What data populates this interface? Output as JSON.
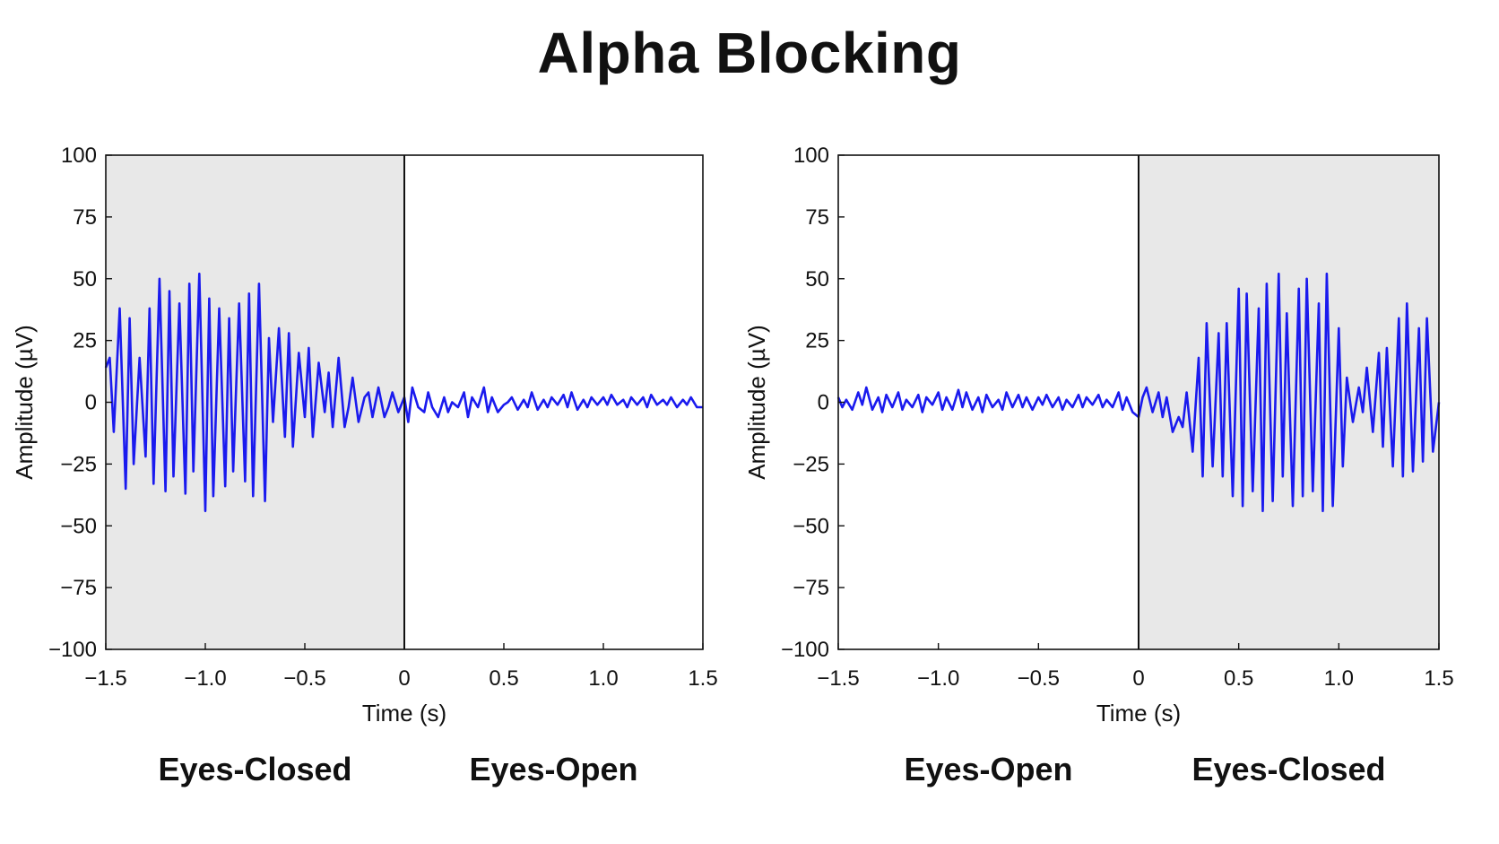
{
  "title": "Alpha Blocking",
  "colors": {
    "trace": "#1a1aee",
    "shade": "#e8e8e8",
    "axis": "#111111"
  },
  "chart_data": [
    {
      "type": "line",
      "xlabel": "Time (s)",
      "ylabel": "Amplitude (µV)",
      "xlim": [
        -1.5,
        1.5
      ],
      "ylim": [
        -100,
        100
      ],
      "xticks": [
        -1.5,
        -1.0,
        -0.5,
        0,
        0.5,
        1.0,
        1.5
      ],
      "xtick_labels": [
        "−1.5",
        "−1.0",
        "−0.5",
        "0",
        "0.5",
        "1.0",
        "1.5"
      ],
      "yticks": [
        100,
        75,
        50,
        25,
        0,
        -25,
        -50,
        -75,
        -100
      ],
      "ytick_labels": [
        "100",
        "75",
        "50",
        "25",
        "0",
        "−25",
        "−50",
        "−75",
        "−100"
      ],
      "shaded_region": [
        -1.5,
        0
      ],
      "event_line": 0,
      "grid": false,
      "segment_labels": [
        "Eyes-Closed",
        "Eyes-Open"
      ],
      "series": [
        {
          "x": [
            -1.5,
            -1.48,
            -1.46,
            -1.43,
            -1.4,
            -1.38,
            -1.36,
            -1.33,
            -1.3,
            -1.28,
            -1.26,
            -1.23,
            -1.2,
            -1.18,
            -1.16,
            -1.13,
            -1.1,
            -1.08,
            -1.06,
            -1.03,
            -1.0,
            -0.98,
            -0.96,
            -0.93,
            -0.9,
            -0.88,
            -0.86,
            -0.83,
            -0.8,
            -0.78,
            -0.76,
            -0.73,
            -0.7,
            -0.68,
            -0.66,
            -0.63,
            -0.6,
            -0.58,
            -0.56,
            -0.53,
            -0.5,
            -0.48,
            -0.46,
            -0.43,
            -0.4,
            -0.38,
            -0.36,
            -0.33,
            -0.3,
            -0.28,
            -0.26,
            -0.23,
            -0.2,
            -0.18,
            -0.16,
            -0.13,
            -0.1,
            -0.08,
            -0.06,
            -0.03,
            0.0,
            0.02,
            0.04,
            0.07,
            0.1,
            0.12,
            0.14,
            0.17,
            0.2,
            0.22,
            0.24,
            0.27,
            0.3,
            0.32,
            0.34,
            0.37,
            0.4,
            0.42,
            0.44,
            0.47,
            0.5,
            0.52,
            0.54,
            0.57,
            0.6,
            0.62,
            0.64,
            0.67,
            0.7,
            0.72,
            0.74,
            0.77,
            0.8,
            0.82,
            0.84,
            0.87,
            0.9,
            0.92,
            0.94,
            0.97,
            1.0,
            1.02,
            1.04,
            1.07,
            1.1,
            1.12,
            1.14,
            1.17,
            1.2,
            1.22,
            1.24,
            1.27,
            1.3,
            1.32,
            1.34,
            1.37,
            1.4,
            1.42,
            1.44,
            1.47,
            1.5
          ],
          "y": [
            14,
            18,
            -12,
            38,
            -35,
            34,
            -25,
            18,
            -22,
            38,
            -33,
            50,
            -36,
            45,
            -30,
            40,
            -37,
            48,
            -28,
            52,
            -44,
            42,
            -38,
            38,
            -34,
            34,
            -28,
            40,
            -32,
            44,
            -38,
            48,
            -40,
            26,
            -8,
            30,
            -14,
            28,
            -18,
            20,
            -6,
            22,
            -14,
            16,
            -4,
            12,
            -10,
            18,
            -10,
            -2,
            10,
            -8,
            2,
            4,
            -6,
            6,
            -6,
            -2,
            4,
            -4,
            2,
            -8,
            6,
            -2,
            -4,
            4,
            -2,
            -6,
            2,
            -4,
            0,
            -2,
            4,
            -6,
            2,
            -2,
            6,
            -4,
            2,
            -4,
            -1,
            0,
            2,
            -3,
            1,
            -2,
            4,
            -3,
            1,
            -2,
            2,
            -1,
            3,
            -2,
            4,
            -3,
            1,
            -2,
            2,
            -1,
            2,
            -1,
            3,
            -1,
            1,
            -2,
            2,
            -1,
            2,
            -2,
            3,
            -1,
            1,
            -1,
            2,
            -2,
            1,
            -1,
            2,
            -2,
            -2
          ]
        }
      ]
    },
    {
      "type": "line",
      "xlabel": "Time (s)",
      "ylabel": "Amplitude (µV)",
      "xlim": [
        -1.5,
        1.5
      ],
      "ylim": [
        -100,
        100
      ],
      "xticks": [
        -1.5,
        -1.0,
        -0.5,
        0,
        0.5,
        1.0,
        1.5
      ],
      "xtick_labels": [
        "−1.5",
        "−1.0",
        "−0.5",
        "0",
        "0.5",
        "1.0",
        "1.5"
      ],
      "yticks": [
        100,
        75,
        50,
        25,
        0,
        -25,
        -50,
        -75,
        -100
      ],
      "ytick_labels": [
        "100",
        "75",
        "50",
        "25",
        "0",
        "−25",
        "−50",
        "−75",
        "−100"
      ],
      "shaded_region": [
        0,
        1.5
      ],
      "event_line": 0,
      "grid": false,
      "segment_labels": [
        "Eyes-Open",
        "Eyes-Closed"
      ],
      "series": [
        {
          "x": [
            -1.5,
            -1.48,
            -1.46,
            -1.43,
            -1.4,
            -1.38,
            -1.36,
            -1.33,
            -1.3,
            -1.28,
            -1.26,
            -1.23,
            -1.2,
            -1.18,
            -1.16,
            -1.13,
            -1.1,
            -1.08,
            -1.06,
            -1.03,
            -1.0,
            -0.98,
            -0.96,
            -0.93,
            -0.9,
            -0.88,
            -0.86,
            -0.83,
            -0.8,
            -0.78,
            -0.76,
            -0.73,
            -0.7,
            -0.68,
            -0.66,
            -0.63,
            -0.6,
            -0.58,
            -0.56,
            -0.53,
            -0.5,
            -0.48,
            -0.46,
            -0.43,
            -0.4,
            -0.38,
            -0.36,
            -0.33,
            -0.3,
            -0.28,
            -0.26,
            -0.23,
            -0.2,
            -0.18,
            -0.16,
            -0.13,
            -0.1,
            -0.08,
            -0.06,
            -0.03,
            0.0,
            0.02,
            0.04,
            0.07,
            0.1,
            0.12,
            0.14,
            0.17,
            0.2,
            0.22,
            0.24,
            0.27,
            0.3,
            0.32,
            0.34,
            0.37,
            0.4,
            0.42,
            0.44,
            0.47,
            0.5,
            0.52,
            0.54,
            0.57,
            0.6,
            0.62,
            0.64,
            0.67,
            0.7,
            0.72,
            0.74,
            0.77,
            0.8,
            0.82,
            0.84,
            0.87,
            0.9,
            0.92,
            0.94,
            0.97,
            1.0,
            1.02,
            1.04,
            1.07,
            1.1,
            1.12,
            1.14,
            1.17,
            1.2,
            1.22,
            1.24,
            1.27,
            1.3,
            1.32,
            1.34,
            1.37,
            1.4,
            1.42,
            1.44,
            1.47,
            1.5
          ],
          "y": [
            2,
            -2,
            1,
            -3,
            4,
            -1,
            6,
            -3,
            2,
            -4,
            3,
            -2,
            4,
            -3,
            1,
            -2,
            3,
            -4,
            2,
            -1,
            4,
            -3,
            2,
            -3,
            5,
            -2,
            4,
            -3,
            2,
            -4,
            3,
            -2,
            1,
            -3,
            4,
            -2,
            3,
            -2,
            2,
            -3,
            2,
            -1,
            3,
            -2,
            2,
            -3,
            1,
            -2,
            3,
            -2,
            2,
            -1,
            3,
            -2,
            1,
            -2,
            4,
            -3,
            2,
            -4,
            -6,
            2,
            6,
            -4,
            4,
            -6,
            2,
            -12,
            -6,
            -10,
            4,
            -20,
            18,
            -30,
            32,
            -26,
            28,
            -30,
            32,
            -38,
            46,
            -42,
            44,
            -36,
            38,
            -44,
            48,
            -40,
            52,
            -30,
            36,
            -42,
            46,
            -38,
            50,
            -36,
            40,
            -44,
            52,
            -42,
            30,
            -26,
            10,
            -8,
            6,
            -4,
            14,
            -12,
            20,
            -18,
            22,
            -26,
            34,
            -30,
            40,
            -28,
            30,
            -24,
            34,
            -20,
            0
          ]
        }
      ]
    }
  ]
}
